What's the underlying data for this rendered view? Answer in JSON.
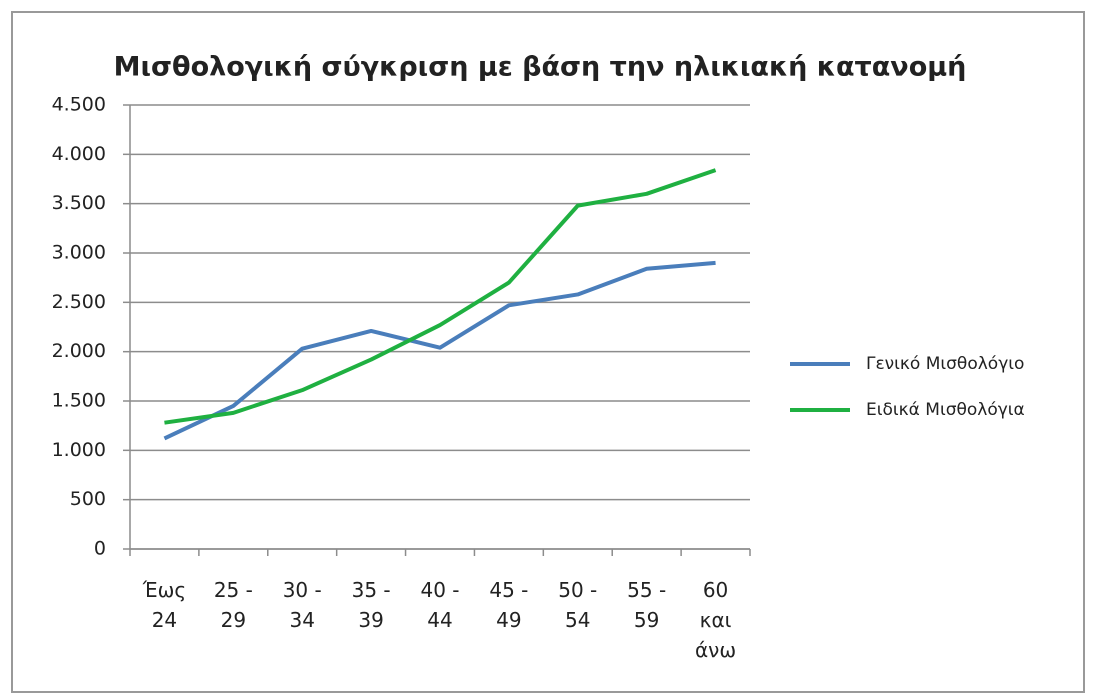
{
  "chart_data": {
    "type": "line",
    "title": "Μισθολογική σύγκριση με βάση την ηλικιακή κατανομή",
    "categories": [
      "Έως 24",
      "25 - 29",
      "30 - 34",
      "35 - 39",
      "40 - 44",
      "45 - 49",
      "50 - 54",
      "55 - 59",
      "60 και άνω"
    ],
    "series": [
      {
        "name": "Γενικό Μισθολόγιο",
        "color": "#4a7ebb",
        "values": [
          1120,
          1450,
          2030,
          2210,
          2040,
          2470,
          2580,
          2840,
          2900
        ]
      },
      {
        "name": "Ειδικά Μισθολόγια",
        "color": "#1fb041",
        "values": [
          1280,
          1380,
          1610,
          1920,
          2270,
          2700,
          3480,
          3600,
          3840
        ]
      }
    ],
    "ylim": [
      0,
      4500
    ],
    "yticks": [
      0,
      500,
      {
        "value": 1000,
        "label": "1.000"
      },
      {
        "value": 1500,
        "label": "1.500"
      },
      {
        "value": 2000,
        "label": "2.000"
      },
      {
        "value": 2500,
        "label": "2.500"
      },
      {
        "value": 3000,
        "label": "3.000"
      },
      {
        "value": 3500,
        "label": "3.500"
      },
      {
        "value": 4000,
        "label": "4.000"
      },
      {
        "value": 4500,
        "label": "4.500"
      }
    ],
    "grid": true,
    "legend": "right"
  }
}
